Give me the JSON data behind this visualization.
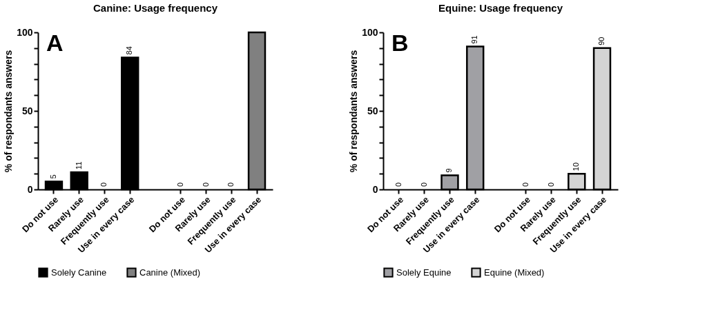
{
  "chart_data": [
    {
      "type": "bar",
      "title": "Canine: Usage frequency",
      "ylabel": "% of respondants answers",
      "categories": [
        "Do not use",
        "Rarely use",
        "Frequently use",
        "Use in every case",
        "Do not use",
        "Rarely use",
        "Frequently use",
        "Use in every case"
      ],
      "series": [
        {
          "name": "Solely Canine",
          "color": "#000000",
          "values": [
            5,
            11,
            0,
            84,
            null,
            null,
            null,
            null
          ],
          "value_labels": [
            "5",
            "11",
            "0",
            "84",
            null,
            null,
            null,
            null
          ]
        },
        {
          "name": "Canine (Mixed)",
          "color": "#808080",
          "values": [
            null,
            null,
            null,
            null,
            0,
            0,
            0,
            100
          ],
          "value_labels": [
            null,
            null,
            null,
            null,
            "0",
            "0",
            "0",
            null
          ]
        }
      ],
      "ylim": [
        0,
        100
      ],
      "yticks": [
        0,
        {
          "value": 10,
          "label": null
        },
        {
          "value": 20,
          "label": null
        },
        {
          "value": 30,
          "label": null
        },
        {
          "value": 40,
          "label": null
        },
        50,
        {
          "value": 60,
          "label": null
        },
        {
          "value": 70,
          "label": null
        },
        {
          "value": 80,
          "label": null
        },
        {
          "value": 90,
          "label": null
        },
        100
      ],
      "annotations": [
        "A"
      ],
      "grid": false,
      "legend": "bottom"
    },
    {
      "type": "bar",
      "title": "Equine: Usage frequency",
      "ylabel": "% of respondants answers",
      "categories": [
        "Do not use",
        "Rarely use",
        "Frequently use",
        "Use in every case",
        "Do not use",
        "Rarely use",
        "Frequently use",
        "Use in every case"
      ],
      "series": [
        {
          "name": "Solely Equine",
          "color": "#a0a0a4",
          "values": [
            0,
            0,
            9,
            91,
            null,
            null,
            null,
            null
          ],
          "value_labels": [
            "0",
            "0",
            "9",
            "91",
            null,
            null,
            null,
            null
          ]
        },
        {
          "name": "Equine (Mixed)",
          "color": "#d4d4d4",
          "values": [
            null,
            null,
            null,
            null,
            0,
            0,
            10,
            90
          ],
          "value_labels": [
            null,
            null,
            null,
            null,
            "0",
            "0",
            "10",
            "90"
          ]
        }
      ],
      "ylim": [
        0,
        100
      ],
      "yticks": [
        0,
        {
          "value": 10,
          "label": null
        },
        {
          "value": 20,
          "label": null
        },
        {
          "value": 30,
          "label": null
        },
        {
          "value": 40,
          "label": null
        },
        50,
        {
          "value": 60,
          "label": null
        },
        {
          "value": 70,
          "label": null
        },
        {
          "value": 80,
          "label": null
        },
        {
          "value": 90,
          "label": null
        },
        100
      ],
      "annotations": [
        "B"
      ],
      "grid": false,
      "legend": "bottom"
    }
  ]
}
